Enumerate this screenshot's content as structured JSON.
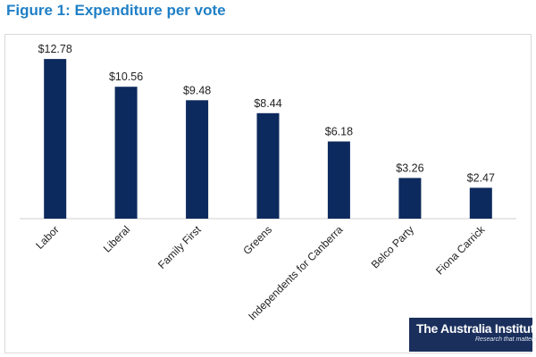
{
  "title": "Figure 1: Expenditure per vote",
  "logo": {
    "name": "The Australia Institute",
    "tagline": "Research that matters."
  },
  "colors": {
    "title": "#1f7fc6",
    "bar": "#0d2a5e",
    "logo_bg": "#1a2f5c"
  },
  "chart_data": {
    "type": "bar",
    "categories": [
      "Labor",
      "Liberal",
      "Family First",
      "Greens",
      "Independents for Canberra",
      "Belco Party",
      "Fiona Carrick"
    ],
    "values": [
      12.78,
      10.56,
      9.48,
      8.44,
      6.18,
      3.26,
      2.47
    ],
    "value_labels": [
      "$12.78",
      "$10.56",
      "$9.48",
      "$8.44",
      "$6.18",
      "$3.26",
      "$2.47"
    ],
    "title": "Figure 1: Expenditure per vote",
    "xlabel": "",
    "ylabel": "",
    "ylim": [
      0,
      14
    ],
    "grid": false,
    "legend": "none",
    "x_tick_rotation": -45
  }
}
